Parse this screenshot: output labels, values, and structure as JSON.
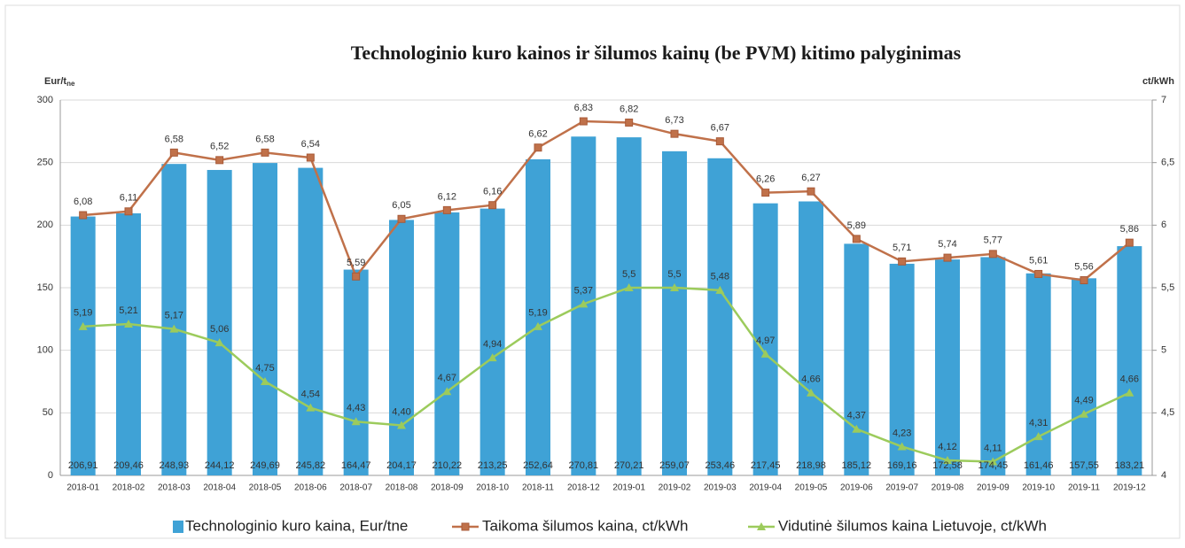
{
  "chart_data": {
    "type": "bar_line",
    "title": "Technologinio kuro kainos ir šilumos kainų (be PVM) kitimo palyginimas",
    "y_label": "Eur/t",
    "y_label_sub": "ne",
    "y2_label": "ct/kWh",
    "categories": [
      "2018-01",
      "2018-02",
      "2018-03",
      "2018-04",
      "2018-05",
      "2018-06",
      "2018-07",
      "2018-08",
      "2018-09",
      "2018-10",
      "2018-11",
      "2018-12",
      "2019-01",
      "2019-02",
      "2019-03",
      "2019-04",
      "2019-05",
      "2019-06",
      "2019-07",
      "2019-08",
      "2019-09",
      "2019-10",
      "2019-11",
      "2019-12"
    ],
    "series": [
      {
        "name": "Technologinio kuro kaina, Eur/tne",
        "type": "bar",
        "color": "#3fa2d6",
        "values": [
          206.91,
          209.46,
          248.93,
          244.12,
          249.69,
          245.82,
          164.47,
          204.17,
          210.22,
          213.25,
          252.64,
          270.81,
          270.21,
          259.07,
          253.46,
          217.45,
          218.98,
          185.12,
          169.16,
          172.58,
          174.45,
          161.46,
          157.55,
          183.21
        ],
        "value_labels": [
          "206,91",
          "209,46",
          "248,93",
          "244,12",
          "249,69",
          "245,82",
          "164,47",
          "204,17",
          "210,22",
          "213,25",
          "252,64",
          "270,81",
          "270,21",
          "259,07",
          "253,46",
          "217,45",
          "218,98",
          "185,12",
          "169,16",
          "172,58",
          "174,45",
          "161,46",
          "157,55",
          "183,21"
        ]
      },
      {
        "name": "Taikoma šilumos kaina, ct/kWh",
        "type": "line",
        "marker": "square",
        "axis": "y2",
        "color": "#c0714a",
        "values": [
          6.08,
          6.11,
          6.58,
          6.52,
          6.58,
          6.54,
          5.59,
          6.05,
          6.12,
          6.16,
          6.62,
          6.83,
          6.82,
          6.73,
          6.67,
          6.26,
          6.27,
          5.89,
          5.71,
          5.74,
          5.77,
          5.61,
          5.56,
          5.86
        ],
        "value_labels": [
          "6,08",
          "6,11",
          "6,58",
          "6,52",
          "6,58",
          "6,54",
          "5,59",
          "6,05",
          "6,12",
          "6,16",
          "6,62",
          "6,83",
          "6,82",
          "6,73",
          "6,67",
          "6,26",
          "6,27",
          "5,89",
          "5,71",
          "5,74",
          "5,77",
          "5,61",
          "5,56",
          "5,86"
        ]
      },
      {
        "name": "Vidutinė šilumos kaina Lietuvoje, ct/kWh",
        "type": "line",
        "marker": "triangle",
        "axis": "y2",
        "color": "#9ccb5c",
        "values": [
          5.19,
          5.21,
          5.17,
          5.06,
          4.75,
          4.54,
          4.43,
          4.4,
          4.67,
          4.94,
          5.19,
          5.37,
          5.5,
          5.5,
          5.48,
          4.97,
          4.66,
          4.37,
          4.23,
          4.12,
          4.11,
          4.31,
          4.49,
          4.66
        ],
        "value_labels": [
          "5,19",
          "5,21",
          "5,17",
          "5,06",
          "4,75",
          "4,54",
          "4,43",
          "4,40",
          "4,67",
          "4,94",
          "5,19",
          "5,37",
          "5,5",
          "5,5",
          "5,48",
          "4,97",
          "4,66",
          "4,37",
          "4,23",
          "4,12",
          "4,11",
          "4,31",
          "4,49",
          "4,66"
        ]
      }
    ],
    "ylim": [
      0,
      300
    ],
    "yticks": [
      0,
      50,
      100,
      150,
      200,
      250,
      300
    ],
    "y2lim": [
      4,
      7
    ],
    "y2ticks": [
      4,
      {
        "value": 4.5,
        "label": "4,5"
      },
      5,
      {
        "value": 5.5,
        "label": "5,5"
      },
      6,
      {
        "value": 6.5,
        "label": "6,5"
      },
      7
    ],
    "grid": true
  }
}
